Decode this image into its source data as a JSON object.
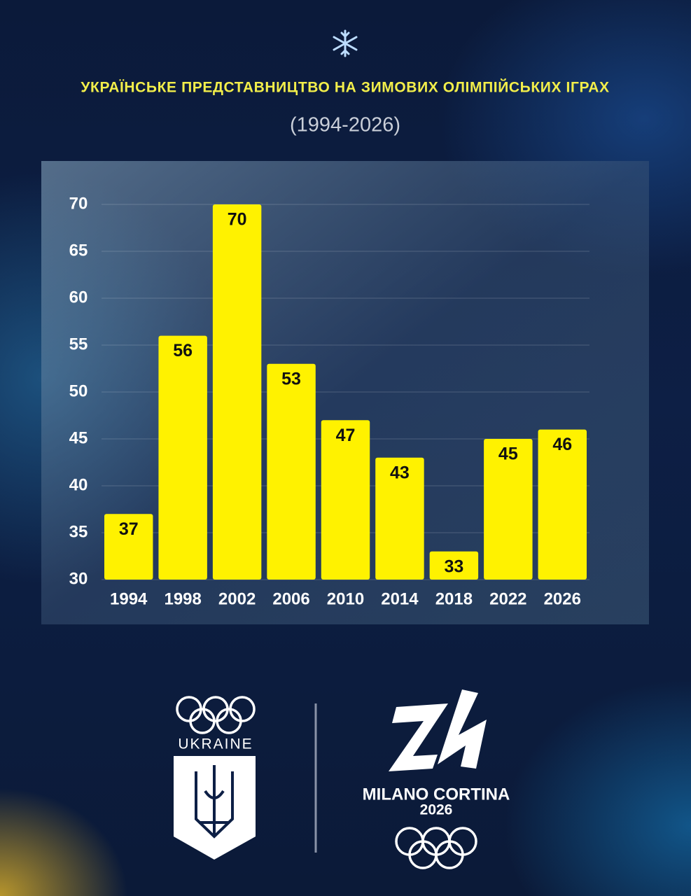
{
  "chart_data": {
    "type": "bar",
    "title": "УКРАЇНСЬКЕ ПРЕДСТАВНИЦТВО НА ЗИМОВИХ ОЛІМПІЙСЬКИХ ІГРАХ",
    "subtitle": "(1994-2026)",
    "categories": [
      "1994",
      "1998",
      "2002",
      "2006",
      "2010",
      "2014",
      "2018",
      "2022",
      "2026"
    ],
    "values": [
      37,
      56,
      70,
      53,
      47,
      43,
      33,
      45,
      46
    ],
    "color": "#fff200",
    "ylim": [
      30,
      70
    ],
    "yticks": [
      30,
      35,
      40,
      45,
      50,
      55,
      60,
      65,
      70
    ],
    "grid": true
  },
  "logos": {
    "left_text": "UKRAINE",
    "right_text": "MILANO CORTINA",
    "right_year": "2026"
  }
}
